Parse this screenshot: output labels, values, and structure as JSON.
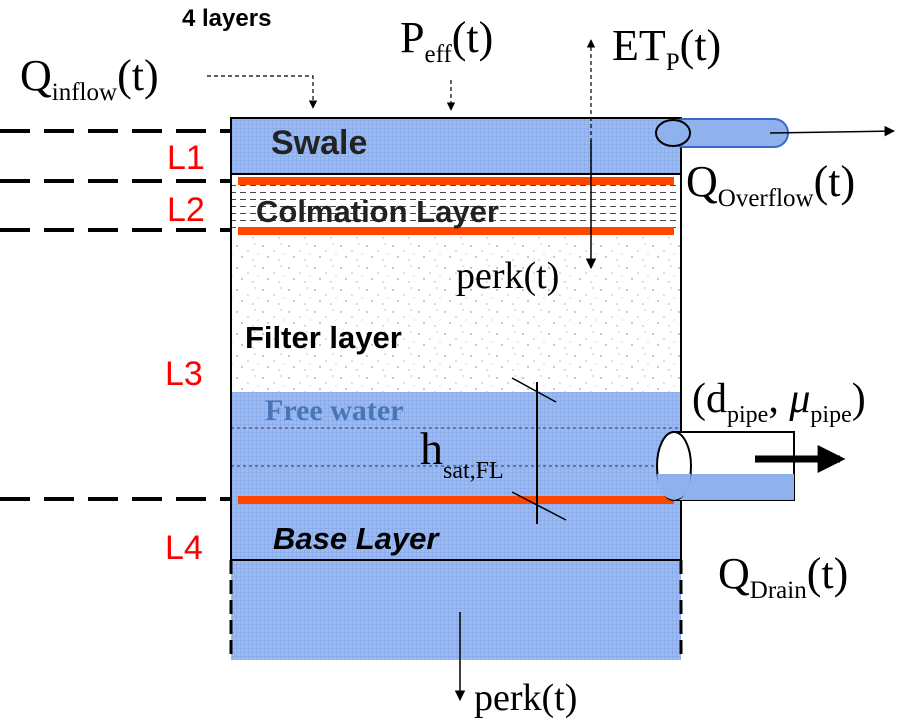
{
  "title": "4 layers",
  "layer_labels": {
    "l1": "L1",
    "l2": "L2",
    "l3": "L3",
    "l4": "L4"
  },
  "layer_names": {
    "swale": "Swale",
    "colmation": "Colmation Layer",
    "filter": "Filter layer",
    "free_water": "Free water",
    "base": "Base Layer"
  },
  "fluxes": {
    "inflow": {
      "main": "Q",
      "sub": "inflow",
      "suffix": "(t)"
    },
    "p_eff": {
      "main": "P",
      "sub": "eff",
      "suffix": "(t)"
    },
    "et_p": {
      "main": "ET",
      "sub": "P",
      "suffix": "(t)"
    },
    "overflow": {
      "main": "Q",
      "sub": "Overflow",
      "suffix": "(t)"
    },
    "perk_inner": "perk(t)",
    "perk_bottom": "perk(t)",
    "drain": {
      "main": "Q",
      "sub": "Drain",
      "suffix": "(t)"
    }
  },
  "pipe": {
    "open": "(d",
    "sub1": "pipe",
    "sep": ", ",
    "mu": "μ",
    "sub2": "pipe",
    "close": ")"
  },
  "h_sat": {
    "main": "h",
    "sub": "sat,FL"
  },
  "colors": {
    "water": "#8fb1ee",
    "water_dark": "#3b67c9",
    "separator": "#ff4500",
    "layer_label": "#ff0000",
    "free_water_text": "#4a76b8",
    "outline": "#000000"
  }
}
